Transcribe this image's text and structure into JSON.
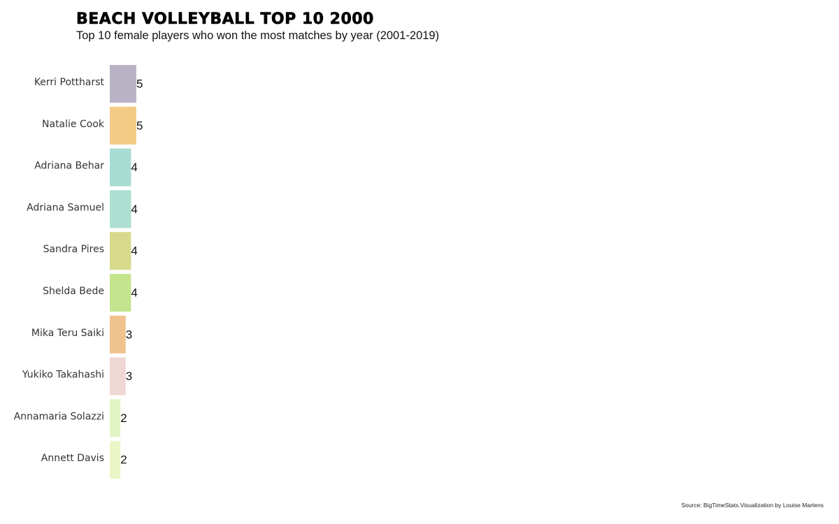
{
  "chart_data": {
    "type": "bar",
    "orientation": "horizontal",
    "title": "BEACH VOLLEYBALL TOP 10 2000",
    "subtitle": "Top 10 female players who won the most matches by year (2001-2019)",
    "source": "Source: BigTimeStats.Visualization by Louise Martens",
    "categories": [
      "Kerri Pottharst",
      "Natalie Cook",
      "Adriana Behar",
      "Adriana Samuel",
      "Sandra Pires",
      "Shelda Bede",
      "Mika Teru Saiki",
      "Yukiko Takahashi",
      "Annamaria Solazzi",
      "Annett Davis"
    ],
    "values": [
      5,
      5,
      4,
      4,
      4,
      4,
      3,
      3,
      2,
      2
    ],
    "colors": [
      "#bab3c6",
      "#f3cb84",
      "#a7ddd3",
      "#addfd2",
      "#d6da8a",
      "#c4e48d",
      "#f0c28e",
      "#efd7d3",
      "#e3f4c4",
      "#eaf6c6"
    ],
    "xlim": [
      0,
      100
    ],
    "grid": false,
    "legend": "none"
  }
}
